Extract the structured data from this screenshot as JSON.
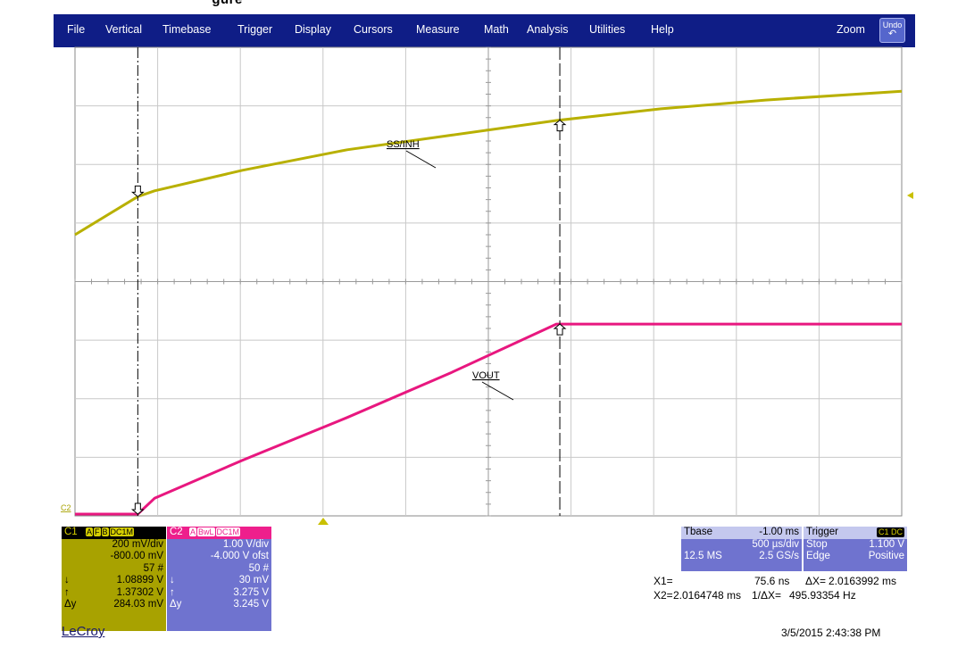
{
  "caption": "        gure          ",
  "menu": {
    "items": [
      "File",
      "Vertical",
      "Timebase",
      "Trigger",
      "Display",
      "Cursors",
      "Measure",
      "Math",
      "Analysis",
      "Utilities",
      "Help"
    ],
    "zoom": "Zoom",
    "undo": "Undo"
  },
  "labels": {
    "ss_inh": "SS/INH",
    "vout": "VOUT",
    "c2_marker": "C2"
  },
  "colors": {
    "c1": "#b8b000",
    "c2": "#e8177f",
    "menubar": "#0f1d86",
    "descriptor": "#6f73cf"
  },
  "chart_data": {
    "type": "line",
    "x_unit": "ms",
    "x": [
      -0.3,
      0.0,
      0.08,
      0.5,
      1.0,
      1.5,
      2.0,
      2.5,
      3.0,
      3.65
    ],
    "xlim": [
      -0.3,
      3.65
    ],
    "grid": true,
    "divisions": {
      "x": 10,
      "y": 8
    },
    "series": [
      {
        "name": "SS/INH",
        "channel": "C1",
        "color": "#b8b000",
        "y": [
          0.96,
          1.09,
          1.11,
          1.18,
          1.25,
          1.3,
          1.35,
          1.39,
          1.42,
          1.45
        ]
      },
      {
        "name": "VOUT",
        "channel": "C2",
        "color": "#e8177f",
        "y": [
          0.03,
          0.03,
          0.3,
          0.95,
          1.68,
          2.45,
          3.275,
          3.275,
          3.275,
          3.275
        ]
      }
    ],
    "cursors": {
      "x1_ms": 7.56e-05,
      "x2_ms": 2.0164748
    }
  },
  "c1": {
    "name": "C1",
    "badges": [
      "A",
      "F",
      "B",
      "DC1M"
    ],
    "vdiv": "200 mV/div",
    "offset": "-800.00 mV",
    "sweeps": "57 #",
    "down_sym": "↓",
    "down": "1.08899 V",
    "up_sym": "↑",
    "up": "1.37302 V",
    "dy_sym": "Δy",
    "dy": "284.03 mV"
  },
  "c2": {
    "name": "C2",
    "badges": [
      "A",
      "BwL",
      "DC1M"
    ],
    "vdiv": "1.00 V/div",
    "offset": "-4.000 V ofst",
    "sweeps": "50 #",
    "down_sym": "↓",
    "down": "30 mV",
    "up_sym": "↑",
    "up": "3.275 V",
    "dy_sym": "Δy",
    "dy": "3.245 V"
  },
  "timebase": {
    "label": "Tbase",
    "delay": "-1.00 ms",
    "tdiv": "500 µs/div",
    "samples": "12.5 MS",
    "rate": "2.5 GS/s"
  },
  "trigger": {
    "label": "Trigger",
    "badge": "C1 DC",
    "mode": "Stop",
    "level": "1.100 V",
    "type": "Edge",
    "slope": "Positive"
  },
  "cursors": {
    "x1_label": "X1=",
    "x1": "75.6 ns",
    "dx_label": "ΔX=",
    "dx": "2.0163992 ms",
    "x2_label": "X2=",
    "x2": "2.0164748 ms",
    "inv_dx_label": "1/ΔX=",
    "inv_dx": "495.93354 Hz"
  },
  "brand": "LeCroy",
  "datetime": "3/5/2015 2:43:38 PM"
}
